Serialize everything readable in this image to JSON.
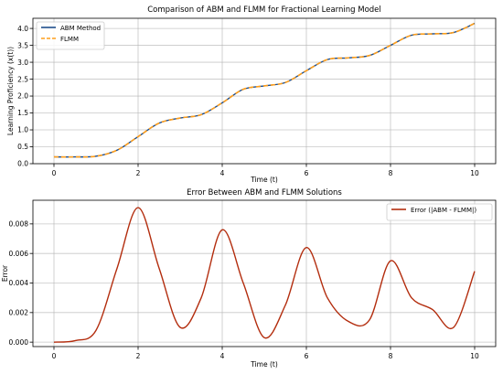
{
  "chart_data": [
    {
      "type": "line",
      "title": "Comparison of ABM and FLMM for Fractional Learning Model",
      "xlabel": "Time (t)",
      "ylabel": "Learning Proficiency (x(t))",
      "xlim": [
        -0.5,
        10.5
      ],
      "ylim": [
        0,
        4.3
      ],
      "xticks": [
        0,
        2,
        4,
        6,
        8,
        10
      ],
      "yticks": [
        0.0,
        0.5,
        1.0,
        1.5,
        2.0,
        2.5,
        3.0,
        3.5,
        4.0
      ],
      "grid": true,
      "legend_position": "top-left",
      "x": [
        0,
        0.5,
        1,
        1.5,
        2,
        2.5,
        3,
        3.5,
        4,
        4.5,
        5,
        5.5,
        6,
        6.5,
        7,
        7.5,
        8,
        8.5,
        9,
        9.5,
        10
      ],
      "series": [
        {
          "name": "ABM Method",
          "color": "#1f4e8c",
          "style": "solid",
          "values": [
            0.2,
            0.2,
            0.22,
            0.4,
            0.8,
            1.2,
            1.35,
            1.45,
            1.8,
            2.2,
            2.3,
            2.4,
            2.75,
            3.08,
            3.13,
            3.2,
            3.5,
            3.8,
            3.84,
            3.88,
            4.15
          ]
        },
        {
          "name": "FLMM",
          "color": "#ff9f1c",
          "style": "dashed",
          "values": [
            0.2,
            0.2,
            0.22,
            0.4,
            0.8,
            1.2,
            1.35,
            1.45,
            1.8,
            2.2,
            2.3,
            2.4,
            2.75,
            3.08,
            3.13,
            3.2,
            3.5,
            3.8,
            3.84,
            3.88,
            4.15
          ]
        }
      ]
    },
    {
      "type": "line",
      "title": "Error Between ABM and FLMM Solutions",
      "xlabel": "Time (t)",
      "ylabel": "Error",
      "xlim": [
        -0.5,
        10.5
      ],
      "ylim": [
        -0.0003,
        0.0096
      ],
      "xticks": [
        0,
        2,
        4,
        6,
        8,
        10
      ],
      "yticks": [
        "0.000",
        "0.002",
        "0.004",
        "0.006",
        "0.008"
      ],
      "grid": true,
      "legend_position": "top-right",
      "x": [
        0,
        0.5,
        1,
        1.5,
        2,
        2.5,
        3,
        3.5,
        4,
        4.5,
        5,
        5.5,
        6,
        6.5,
        7,
        7.5,
        8,
        8.5,
        9,
        9.5,
        10
      ],
      "series": [
        {
          "name": "Error (|ABM - FLMM|)",
          "color": "#b32d0e",
          "style": "solid",
          "values": [
            0.0,
            0.0001,
            0.0008,
            0.005,
            0.0091,
            0.005,
            0.001,
            0.003,
            0.0076,
            0.004,
            0.0003,
            0.0025,
            0.0064,
            0.003,
            0.0014,
            0.0015,
            0.0055,
            0.003,
            0.0022,
            0.001,
            0.0048
          ]
        }
      ]
    }
  ]
}
